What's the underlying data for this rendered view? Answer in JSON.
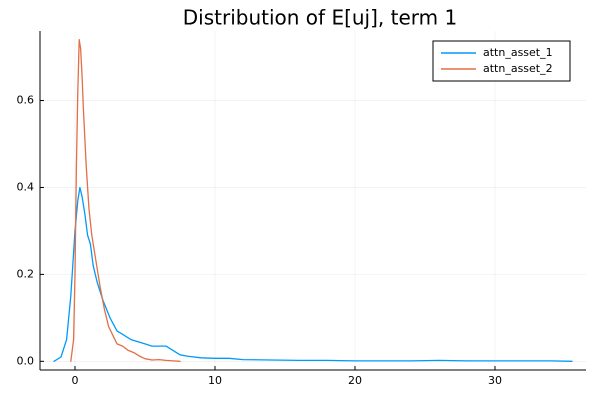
{
  "chart_data": {
    "type": "line",
    "title": "Distribution of E[uj], term 1",
    "xlabel": "",
    "ylabel": "",
    "xlim": [
      -2.5,
      36.5
    ],
    "ylim": [
      -0.02,
      0.76
    ],
    "xticks": [
      0,
      10,
      20,
      30
    ],
    "yticks": [
      0.0,
      0.2,
      0.4,
      0.6
    ],
    "xtick_labels": [
      "0",
      "10",
      "20",
      "30"
    ],
    "ytick_labels": [
      "0.0",
      "0.2",
      "0.4",
      "0.6"
    ],
    "grid": true,
    "legend_position": "top-right",
    "series": [
      {
        "name": "attn_asset_1",
        "color": "#009AFA",
        "x": [
          -1.5,
          -1.0,
          -0.6,
          -0.3,
          0.0,
          0.2,
          0.35,
          0.5,
          0.7,
          0.9,
          1.1,
          1.3,
          1.6,
          2.0,
          2.5,
          3.0,
          3.5,
          4.0,
          4.5,
          5.0,
          5.5,
          6.0,
          6.5,
          7.0,
          7.5,
          8.0,
          9.0,
          10.0,
          11.0,
          12.0,
          14.0,
          16.0,
          18.0,
          20.0,
          22.0,
          24.0,
          26.0,
          28.0,
          30.0,
          32.0,
          34.0,
          35.5
        ],
        "y": [
          0.0,
          0.01,
          0.05,
          0.15,
          0.3,
          0.37,
          0.4,
          0.38,
          0.34,
          0.29,
          0.27,
          0.22,
          0.18,
          0.14,
          0.1,
          0.07,
          0.06,
          0.05,
          0.045,
          0.04,
          0.035,
          0.035,
          0.035,
          0.025,
          0.015,
          0.012,
          0.008,
          0.007,
          0.007,
          0.004,
          0.003,
          0.002,
          0.002,
          0.001,
          0.001,
          0.001,
          0.002,
          0.001,
          0.001,
          0.001,
          0.001,
          0.0
        ]
      },
      {
        "name": "attn_asset_2",
        "color": "#E26F46",
        "x": [
          -0.3,
          -0.1,
          0.0,
          0.1,
          0.2,
          0.3,
          0.4,
          0.5,
          0.6,
          0.8,
          1.0,
          1.2,
          1.5,
          1.8,
          2.1,
          2.4,
          2.7,
          3.0,
          3.4,
          3.8,
          4.2,
          4.6,
          5.0,
          5.5,
          6.0,
          6.5,
          7.0,
          7.5
        ],
        "y": [
          0.0,
          0.05,
          0.2,
          0.45,
          0.62,
          0.74,
          0.72,
          0.66,
          0.58,
          0.45,
          0.35,
          0.29,
          0.23,
          0.17,
          0.12,
          0.08,
          0.06,
          0.04,
          0.035,
          0.025,
          0.02,
          0.012,
          0.006,
          0.003,
          0.004,
          0.002,
          0.001,
          0.0
        ]
      }
    ]
  }
}
